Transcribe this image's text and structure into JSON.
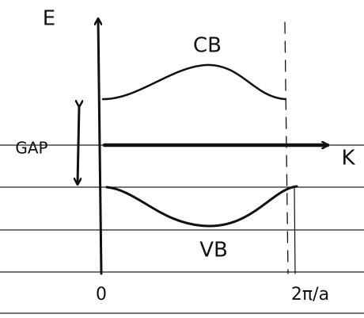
{
  "axes": {
    "energy_label": "E",
    "momentum_label": "K",
    "origin_label": "0",
    "end_label": "2π/a"
  },
  "bands": {
    "conduction": "CB",
    "valence": "VB"
  },
  "gap_label": "GAP"
}
